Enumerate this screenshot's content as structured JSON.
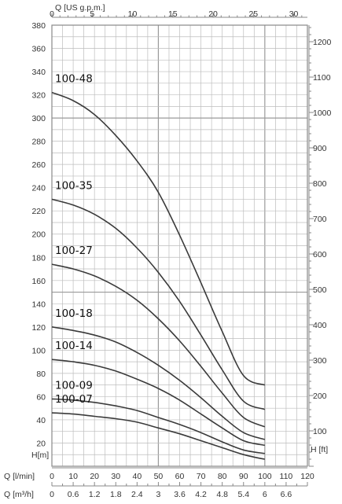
{
  "chart_data": {
    "type": "line",
    "title": "",
    "axes": {
      "top": {
        "label": "Q [US g.p.m.]",
        "range": [
          0,
          30
        ],
        "ticks": [
          "0",
          "5",
          "10",
          "15",
          "20",
          "25",
          "30"
        ]
      },
      "left": {
        "label": "H[m]",
        "range": [
          0,
          380
        ],
        "ticks": [
          "0",
          "20",
          "40",
          "60",
          "80",
          "100",
          "120",
          "140",
          "160",
          "180",
          "200",
          "220",
          "240",
          "260",
          "280",
          "300",
          "320",
          "340",
          "360",
          "380"
        ]
      },
      "right": {
        "label": "H [ft]",
        "range": [
          0,
          1247
        ],
        "ticks": [
          "0",
          "100",
          "200",
          "300",
          "400",
          "500",
          "600",
          "700",
          "800",
          "900",
          "1000",
          "1100",
          "1200"
        ]
      },
      "bottom": {
        "label": "Q [l/min]",
        "range": [
          0,
          120
        ],
        "ticks": [
          "0",
          "10",
          "20",
          "30",
          "40",
          "50",
          "60",
          "70",
          "80",
          "90",
          "100",
          "110",
          "120"
        ]
      },
      "bottom2": {
        "label": "Q [m³/h]",
        "range": [
          0,
          7.2
        ],
        "ticks": [
          "0",
          "0.6",
          "1.2",
          "1.8",
          "2.4",
          "3",
          "3.6",
          "4.2",
          "4.8",
          "5.4",
          "6",
          "6.6"
        ]
      }
    },
    "grid": true,
    "series": [
      {
        "name": "100-48",
        "points": [
          [
            0,
            322
          ],
          [
            10,
            315
          ],
          [
            20,
            303
          ],
          [
            30,
            285
          ],
          [
            40,
            263
          ],
          [
            50,
            236
          ],
          [
            60,
            199
          ],
          [
            70,
            158
          ],
          [
            80,
            116
          ],
          [
            90,
            78
          ],
          [
            100,
            70
          ]
        ]
      },
      {
        "name": "100-35",
        "points": [
          [
            0,
            230
          ],
          [
            10,
            225
          ],
          [
            20,
            217
          ],
          [
            30,
            205
          ],
          [
            40,
            188
          ],
          [
            50,
            167
          ],
          [
            60,
            142
          ],
          [
            70,
            113
          ],
          [
            80,
            83
          ],
          [
            90,
            56
          ],
          [
            100,
            49
          ]
        ]
      },
      {
        "name": "100-27",
        "points": [
          [
            0,
            174
          ],
          [
            10,
            170
          ],
          [
            20,
            164
          ],
          [
            30,
            155
          ],
          [
            40,
            143
          ],
          [
            50,
            127
          ],
          [
            60,
            108
          ],
          [
            70,
            86
          ],
          [
            80,
            63
          ],
          [
            90,
            42
          ],
          [
            100,
            34
          ]
        ]
      },
      {
        "name": "100-18",
        "points": [
          [
            0,
            120
          ],
          [
            10,
            117
          ],
          [
            20,
            113
          ],
          [
            30,
            107
          ],
          [
            40,
            98
          ],
          [
            50,
            87
          ],
          [
            60,
            74
          ],
          [
            70,
            59
          ],
          [
            80,
            43
          ],
          [
            90,
            29
          ],
          [
            100,
            23
          ]
        ]
      },
      {
        "name": "100-14",
        "points": [
          [
            0,
            92
          ],
          [
            10,
            90
          ],
          [
            20,
            87
          ],
          [
            30,
            82
          ],
          [
            40,
            75
          ],
          [
            50,
            67
          ],
          [
            60,
            57
          ],
          [
            70,
            45
          ],
          [
            80,
            33
          ],
          [
            90,
            22
          ],
          [
            100,
            18
          ]
        ]
      },
      {
        "name": "100-09",
        "points": [
          [
            0,
            58
          ],
          [
            10,
            57
          ],
          [
            20,
            55
          ],
          [
            30,
            52
          ],
          [
            40,
            48
          ],
          [
            50,
            42
          ],
          [
            60,
            36
          ],
          [
            70,
            29
          ],
          [
            80,
            21
          ],
          [
            90,
            14
          ],
          [
            100,
            11
          ]
        ]
      },
      {
        "name": "100-07",
        "points": [
          [
            0,
            46
          ],
          [
            10,
            45
          ],
          [
            20,
            43
          ],
          [
            30,
            41
          ],
          [
            40,
            38
          ],
          [
            50,
            33
          ],
          [
            60,
            28
          ],
          [
            70,
            22
          ],
          [
            80,
            16
          ],
          [
            90,
            10
          ],
          [
            100,
            6
          ]
        ]
      }
    ],
    "label_anchor_h": [
      322,
      230,
      174,
      120,
      92,
      58,
      46
    ],
    "colors": {
      "curve": "#3a3a3a",
      "grid_major": "#9a9a9a",
      "grid_minor": "#bdbdbd",
      "text": "#333333"
    }
  }
}
